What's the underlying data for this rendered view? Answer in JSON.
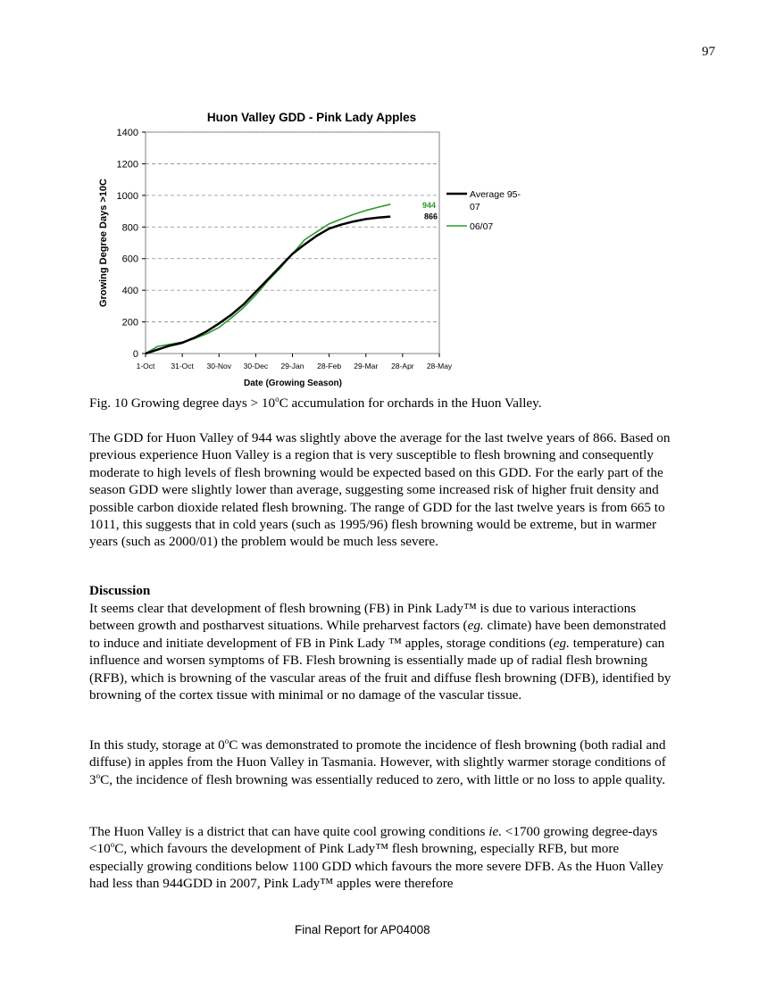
{
  "page_number": "97",
  "chart_data": {
    "type": "line",
    "title": "Huon Valley GDD - Pink Lady Apples",
    "xlabel": "Date (Growing Season)",
    "ylabel": "Growing Degree Days >10C",
    "ylim": [
      0,
      1400
    ],
    "yticks": [
      "0",
      "200",
      "400",
      "600",
      "800",
      "1000",
      "1200",
      "1400"
    ],
    "xticks": [
      "1-Oct",
      "31-Oct",
      "30-Nov",
      "30-Dec",
      "29-Jan",
      "28-Feb",
      "29-Mar",
      "28-Apr",
      "28-May"
    ],
    "grid": "horizontal dashed",
    "legend_position": "right",
    "series": [
      {
        "name": "Average 95-07",
        "color": "#000000",
        "end_label": "866",
        "x_days": [
          0,
          10,
          20,
          30,
          40,
          50,
          60,
          70,
          80,
          90,
          100,
          110,
          120,
          130,
          140,
          150,
          160,
          170,
          180,
          190,
          200,
          210,
          220
        ],
        "values": [
          0,
          25,
          50,
          68,
          100,
          140,
          190,
          245,
          310,
          390,
          470,
          550,
          630,
          690,
          745,
          790,
          815,
          835,
          850,
          860,
          866,
          866,
          866
        ]
      },
      {
        "name": "06/07",
        "color": "#2a9a2a",
        "end_label": "944",
        "x_days": [
          0,
          10,
          20,
          30,
          40,
          50,
          60,
          70,
          80,
          90,
          100,
          110,
          120,
          130,
          140,
          150,
          160,
          170,
          180,
          190,
          200,
          210,
          220
        ],
        "values": [
          0,
          45,
          58,
          72,
          95,
          125,
          165,
          225,
          290,
          370,
          460,
          540,
          630,
          720,
          770,
          820,
          850,
          880,
          905,
          925,
          944,
          944,
          944
        ]
      }
    ]
  },
  "caption": {
    "prefix": "Fig. 10 Growing degree days > 10",
    "sup": "o",
    "suffix": "C accumulation for orchards in the Huon Valley."
  },
  "paragraph1": "The GDD for Huon Valley of 944 was slightly above the average for the last twelve years of 866.  Based on previous experience Huon Valley is a region that is very susceptible to flesh browning and consequently moderate to high levels of flesh browning would be expected based on this GDD.  For the early part of the season GDD were slightly lower than average, suggesting some increased risk of higher fruit density and possible carbon dioxide related flesh browning. The range of GDD for the last twelve years is from 665 to 1011, this suggests that in cold years (such as 1995/96) flesh browning would be extreme, but in warmer years (such as 2000/01) the problem would be much less severe.",
  "discussion_heading": "Discussion",
  "paragraph2": {
    "a": "It seems clear that development of flesh browning (FB) in Pink Lady™ is due to various interactions between growth and postharvest situations. While preharvest factors (",
    "a_em": "eg.",
    "b": " climate) have been demonstrated to induce and initiate development of FB in Pink Lady ™ apples, storage conditions (",
    "b_em": "eg.",
    "c": " temperature) can influence and worsen symptoms of FB. Flesh browning is essentially made up of radial flesh browning (RFB), which is browning of the vascular areas of the fruit and diffuse flesh browning (DFB), identified by browning of the cortex tissue with minimal or no damage of the vascular tissue."
  },
  "paragraph3": {
    "a": "In this study, storage at 0",
    "sup1": "o",
    "b": "C was demonstrated to promote the incidence of flesh browning (both radial and diffuse) in apples from the Huon Valley in Tasmania. However, with slightly warmer storage conditions of 3",
    "sup2": "o",
    "c": "C, the incidence of flesh browning was essentially reduced to zero, with little or no loss to apple quality."
  },
  "paragraph4": {
    "a": "The Huon Valley is a district that can have quite cool growing conditions ",
    "em": "ie.",
    "b": " <1700 growing degree-days <10",
    "sup": "o",
    "c": "C, which favours the development of Pink Lady™ flesh browning, especially RFB, but more especially growing conditions below 1100 GDD which favours the more severe DFB. As the Huon Valley had less than 944GDD in 2007, Pink Lady™ apples were therefore"
  },
  "footer": "Final Report for AP04008"
}
